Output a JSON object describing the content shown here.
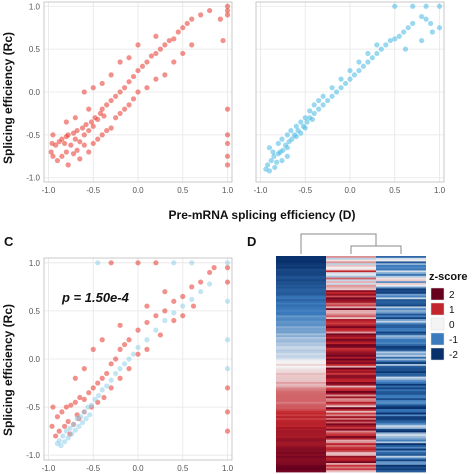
{
  "figure": {
    "x_axis_label": "Pre-mRNA splicing efficiency (D)",
    "y_axis_label": "Splicing efficiency (Rc)",
    "panel_c_label": "C",
    "panel_d_label": "D",
    "pvalue": "p = 1.50e-4"
  },
  "chart_data": [
    {
      "type": "scatter",
      "panel": "A-left",
      "xlim": [
        -1.05,
        1.05
      ],
      "ylim": [
        -1.05,
        1.05
      ],
      "x_ticks": [
        "-1.0",
        "-0.5",
        "0.0",
        "0.5",
        "1.0"
      ],
      "y_ticks": [
        "-1.0",
        "-0.5",
        "0.0",
        "0.5",
        "1.0"
      ],
      "color": "#e8362d",
      "grid": true,
      "points": [
        [
          -0.92,
          -0.62
        ],
        [
          -0.88,
          -0.58
        ],
        [
          -0.85,
          -0.55
        ],
        [
          -0.82,
          -0.6
        ],
        [
          -0.8,
          -0.52
        ],
        [
          -0.78,
          -0.5
        ],
        [
          -0.75,
          -0.62
        ],
        [
          -0.72,
          -0.48
        ],
        [
          -0.7,
          -0.55
        ],
        [
          -0.68,
          -0.45
        ],
        [
          -0.65,
          -0.58
        ],
        [
          -0.62,
          -0.42
        ],
        [
          -0.6,
          -0.5
        ],
        [
          -0.58,
          -0.38
        ],
        [
          -0.55,
          -0.45
        ],
        [
          -0.52,
          -0.35
        ],
        [
          -0.5,
          -0.4
        ],
        [
          -0.48,
          -0.3
        ],
        [
          -0.45,
          -0.32
        ],
        [
          -0.42,
          -0.25
        ],
        [
          -0.4,
          -0.2
        ],
        [
          -0.38,
          -0.28
        ],
        [
          -0.35,
          -0.15
        ],
        [
          -0.3,
          -0.1
        ],
        [
          -0.25,
          -0.05
        ],
        [
          -0.2,
          0.0
        ],
        [
          -0.15,
          0.05
        ],
        [
          -0.1,
          0.12
        ],
        [
          -0.05,
          0.18
        ],
        [
          0.0,
          0.25
        ],
        [
          0.05,
          0.3
        ],
        [
          0.1,
          0.35
        ],
        [
          0.15,
          0.42
        ],
        [
          0.2,
          0.45
        ],
        [
          0.25,
          0.5
        ],
        [
          0.3,
          0.55
        ],
        [
          0.35,
          0.6
        ],
        [
          0.4,
          0.62
        ],
        [
          0.45,
          0.7
        ],
        [
          0.5,
          0.75
        ],
        [
          0.55,
          0.8
        ],
        [
          0.6,
          0.85
        ],
        [
          0.7,
          0.9
        ],
        [
          0.8,
          0.95
        ],
        [
          -0.9,
          -0.8
        ],
        [
          -0.85,
          -0.75
        ],
        [
          -0.8,
          -0.7
        ],
        [
          -0.78,
          -0.85
        ],
        [
          -0.72,
          -0.72
        ],
        [
          -0.68,
          -0.68
        ],
        [
          -0.65,
          -0.78
        ],
        [
          -0.6,
          -0.62
        ],
        [
          -0.55,
          -0.7
        ],
        [
          -0.5,
          -0.6
        ],
        [
          -0.45,
          -0.55
        ],
        [
          -0.4,
          -0.5
        ],
        [
          -0.35,
          -0.45
        ],
        [
          -0.3,
          -0.42
        ],
        [
          -0.25,
          -0.3
        ],
        [
          -0.2,
          -0.25
        ],
        [
          -0.15,
          -0.2
        ],
        [
          -0.1,
          -0.15
        ],
        [
          -0.05,
          -0.08
        ],
        [
          0.0,
          0.0
        ],
        [
          0.1,
          0.05
        ],
        [
          0.2,
          0.15
        ],
        [
          0.3,
          0.2
        ],
        [
          0.4,
          0.35
        ],
        [
          0.5,
          0.45
        ],
        [
          0.6,
          0.55
        ],
        [
          -0.95,
          -0.5
        ],
        [
          -0.96,
          -0.6
        ],
        [
          -0.97,
          -0.7
        ],
        [
          -0.95,
          -0.75
        ],
        [
          1.0,
          -0.2
        ],
        [
          1.0,
          -0.5
        ],
        [
          1.0,
          -0.6
        ],
        [
          1.0,
          -0.75
        ],
        [
          1.0,
          -0.85
        ],
        [
          1.0,
          0.9
        ],
        [
          1.0,
          0.95
        ],
        [
          1.0,
          1.0
        ],
        [
          0.92,
          0.85
        ],
        [
          0.95,
          0.6
        ],
        [
          -0.6,
          0.0
        ],
        [
          -0.5,
          0.05
        ],
        [
          -0.4,
          0.1
        ],
        [
          -0.3,
          0.2
        ],
        [
          -0.55,
          -0.2
        ],
        [
          -0.7,
          -0.3
        ],
        [
          -0.8,
          -0.35
        ],
        [
          -0.2,
          0.35
        ],
        [
          0.0,
          0.55
        ],
        [
          0.2,
          0.65
        ],
        [
          -0.1,
          0.4
        ]
      ]
    },
    {
      "type": "scatter",
      "panel": "A-right",
      "xlim": [
        -1.05,
        1.05
      ],
      "ylim": [
        -1.05,
        1.05
      ],
      "x_ticks": [
        "-1.0",
        "-0.5",
        "0.0",
        "0.5",
        "1.0"
      ],
      "color": "#45b8e2",
      "grid": true,
      "points": [
        [
          -0.92,
          -0.85
        ],
        [
          -0.88,
          -0.8
        ],
        [
          -0.85,
          -0.75
        ],
        [
          -0.82,
          -0.82
        ],
        [
          -0.8,
          -0.72
        ],
        [
          -0.78,
          -0.7
        ],
        [
          -0.75,
          -0.68
        ],
        [
          -0.72,
          -0.62
        ],
        [
          -0.7,
          -0.65
        ],
        [
          -0.68,
          -0.58
        ],
        [
          -0.65,
          -0.55
        ],
        [
          -0.62,
          -0.5
        ],
        [
          -0.6,
          -0.52
        ],
        [
          -0.58,
          -0.45
        ],
        [
          -0.55,
          -0.48
        ],
        [
          -0.52,
          -0.4
        ],
        [
          -0.5,
          -0.42
        ],
        [
          -0.48,
          -0.35
        ],
        [
          -0.45,
          -0.3
        ],
        [
          -0.42,
          -0.32
        ],
        [
          -0.4,
          -0.25
        ],
        [
          -0.35,
          -0.2
        ],
        [
          -0.3,
          -0.15
        ],
        [
          -0.25,
          -0.1
        ],
        [
          -0.2,
          -0.05
        ],
        [
          -0.15,
          0.0
        ],
        [
          -0.1,
          0.05
        ],
        [
          -0.05,
          0.1
        ],
        [
          0.0,
          0.15
        ],
        [
          0.05,
          0.2
        ],
        [
          0.1,
          0.25
        ],
        [
          0.15,
          0.3
        ],
        [
          0.2,
          0.35
        ],
        [
          0.25,
          0.4
        ],
        [
          0.3,
          0.45
        ],
        [
          0.35,
          0.5
        ],
        [
          0.4,
          0.55
        ],
        [
          0.45,
          0.6
        ],
        [
          0.5,
          0.62
        ],
        [
          0.55,
          0.65
        ],
        [
          0.6,
          0.7
        ],
        [
          0.65,
          0.75
        ],
        [
          0.7,
          0.8
        ],
        [
          0.8,
          0.88
        ],
        [
          0.85,
          0.85
        ],
        [
          0.9,
          0.8
        ],
        [
          -0.9,
          -0.65
        ],
        [
          -0.86,
          -0.7
        ],
        [
          -0.8,
          -0.6
        ],
        [
          -0.76,
          -0.55
        ],
        [
          -0.7,
          -0.5
        ],
        [
          -0.66,
          -0.45
        ],
        [
          -0.6,
          -0.4
        ],
        [
          -0.55,
          -0.35
        ],
        [
          -0.5,
          -0.3
        ],
        [
          -0.45,
          -0.22
        ],
        [
          -0.4,
          -0.15
        ],
        [
          -0.35,
          -0.1
        ],
        [
          -0.3,
          -0.05
        ],
        [
          -0.2,
          0.05
        ],
        [
          -0.1,
          0.15
        ],
        [
          0.0,
          0.25
        ],
        [
          0.1,
          0.35
        ],
        [
          0.2,
          0.45
        ],
        [
          0.3,
          0.55
        ],
        [
          -0.94,
          -0.9
        ],
        [
          -0.9,
          -0.92
        ],
        [
          -0.84,
          -0.88
        ],
        [
          -0.76,
          -0.8
        ],
        [
          -0.7,
          -0.75
        ],
        [
          1.0,
          1.0
        ],
        [
          0.7,
          1.0
        ],
        [
          0.5,
          1.0
        ],
        [
          0.85,
          1.0
        ],
        [
          1.0,
          0.75
        ],
        [
          0.92,
          0.7
        ],
        [
          0.8,
          0.6
        ],
        [
          0.62,
          0.5
        ]
      ]
    },
    {
      "type": "scatter",
      "panel": "C",
      "xlim": [
        -1.05,
        1.05
      ],
      "ylim": [
        -1.05,
        1.05
      ],
      "x_ticks": [
        "-1.0",
        "-0.5",
        "0.0",
        "0.5",
        "1.0"
      ],
      "y_ticks": [
        "-1.0",
        "-0.5",
        "0.0",
        "0.5",
        "1.0"
      ],
      "grid": true,
      "series": [
        {
          "color": "#e8362d",
          "points": [
            [
              -0.9,
              -0.6
            ],
            [
              -0.85,
              -0.55
            ],
            [
              -0.8,
              -0.5
            ],
            [
              -0.78,
              -0.65
            ],
            [
              -0.75,
              -0.48
            ],
            [
              -0.7,
              -0.45
            ],
            [
              -0.68,
              -0.58
            ],
            [
              -0.65,
              -0.4
            ],
            [
              -0.6,
              -0.42
            ],
            [
              -0.55,
              -0.35
            ],
            [
              -0.5,
              -0.3
            ],
            [
              -0.45,
              -0.25
            ],
            [
              -0.4,
              -0.2
            ],
            [
              -0.35,
              -0.15
            ],
            [
              -0.3,
              -0.05
            ],
            [
              -0.25,
              0.0
            ],
            [
              -0.2,
              0.1
            ],
            [
              -0.15,
              0.15
            ],
            [
              -0.1,
              0.2
            ],
            [
              0.0,
              0.3
            ],
            [
              0.1,
              0.38
            ],
            [
              0.2,
              0.45
            ],
            [
              0.3,
              0.5
            ],
            [
              0.4,
              0.6
            ],
            [
              0.5,
              0.65
            ],
            [
              0.6,
              0.75
            ],
            [
              0.7,
              0.8
            ],
            [
              0.8,
              0.9
            ],
            [
              -0.92,
              -0.8
            ],
            [
              -0.88,
              -0.75
            ],
            [
              -0.82,
              -0.7
            ],
            [
              -0.76,
              -0.78
            ],
            [
              -0.72,
              -0.68
            ],
            [
              -0.66,
              -0.62
            ],
            [
              -0.6,
              -0.55
            ],
            [
              -0.52,
              -0.5
            ],
            [
              -0.45,
              -0.45
            ],
            [
              -0.38,
              -0.4
            ],
            [
              -0.3,
              -0.3
            ],
            [
              -0.2,
              -0.2
            ],
            [
              -0.1,
              -0.1
            ],
            [
              0.0,
              0.05
            ],
            [
              0.1,
              0.1
            ],
            [
              0.25,
              0.25
            ],
            [
              0.4,
              0.4
            ],
            [
              -0.95,
              -0.5
            ],
            [
              -0.96,
              -0.7
            ],
            [
              1.0,
              -0.3
            ],
            [
              1.0,
              -0.55
            ],
            [
              1.0,
              -0.75
            ],
            [
              1.0,
              0.95
            ],
            [
              1.0,
              0.8
            ],
            [
              0.85,
              0.95
            ],
            [
              -0.3,
              1.0
            ],
            [
              0.0,
              1.0
            ],
            [
              0.2,
              1.0
            ],
            [
              -0.5,
              0.1
            ],
            [
              -0.4,
              0.2
            ],
            [
              -0.6,
              -0.1
            ],
            [
              -0.2,
              0.35
            ],
            [
              0.1,
              0.55
            ],
            [
              0.3,
              0.7
            ],
            [
              -0.7,
              -0.2
            ],
            [
              0.5,
              0.45
            ],
            [
              0.62,
              0.55
            ]
          ]
        },
        {
          "color": "#8fd0ea",
          "points": [
            [
              -0.88,
              -0.85
            ],
            [
              -0.84,
              -0.8
            ],
            [
              -0.8,
              -0.75
            ],
            [
              -0.76,
              -0.72
            ],
            [
              -0.72,
              -0.68
            ],
            [
              -0.68,
              -0.62
            ],
            [
              -0.64,
              -0.6
            ],
            [
              -0.6,
              -0.55
            ],
            [
              -0.56,
              -0.5
            ],
            [
              -0.52,
              -0.48
            ],
            [
              -0.48,
              -0.42
            ],
            [
              -0.44,
              -0.38
            ],
            [
              -0.4,
              -0.32
            ],
            [
              -0.35,
              -0.28
            ],
            [
              -0.3,
              -0.22
            ],
            [
              -0.25,
              -0.15
            ],
            [
              -0.2,
              -0.1
            ],
            [
              -0.15,
              -0.05
            ],
            [
              -0.1,
              0.0
            ],
            [
              -0.05,
              0.05
            ],
            [
              0.0,
              0.12
            ],
            [
              0.1,
              0.2
            ],
            [
              0.2,
              0.3
            ],
            [
              0.3,
              0.4
            ],
            [
              0.4,
              0.48
            ],
            [
              0.5,
              0.55
            ],
            [
              0.6,
              0.62
            ],
            [
              0.7,
              0.7
            ],
            [
              0.8,
              0.78
            ],
            [
              -0.9,
              -0.88
            ],
            [
              -0.86,
              -0.9
            ],
            [
              -0.82,
              -0.86
            ],
            [
              -0.78,
              -0.82
            ],
            [
              -0.74,
              -0.78
            ],
            [
              -0.7,
              -0.74
            ],
            [
              -0.66,
              -0.7
            ],
            [
              -0.62,
              -0.66
            ],
            [
              -0.58,
              -0.62
            ],
            [
              -0.54,
              -0.58
            ],
            [
              1.0,
              1.0
            ],
            [
              0.6,
              1.0
            ],
            [
              0.4,
              1.0
            ],
            [
              -0.45,
              1.0
            ],
            [
              1.0,
              0.6
            ],
            [
              1.0,
              0.2
            ],
            [
              1.0,
              -0.1
            ]
          ]
        }
      ]
    },
    {
      "type": "heatmap",
      "panel": "D",
      "columns": 3,
      "rows": 120,
      "legend_title": "z-score",
      "legend_ticks": [
        "2",
        "1",
        "0",
        "-1",
        "-2"
      ],
      "legend_colors": [
        "#67001f",
        "#c2252c",
        "#f4f4f4",
        "#3b7bbd",
        "#08306b"
      ],
      "column_profiles": [
        "gradient_blue_to_red",
        "mostly_red",
        "mostly_blue"
      ]
    }
  ]
}
